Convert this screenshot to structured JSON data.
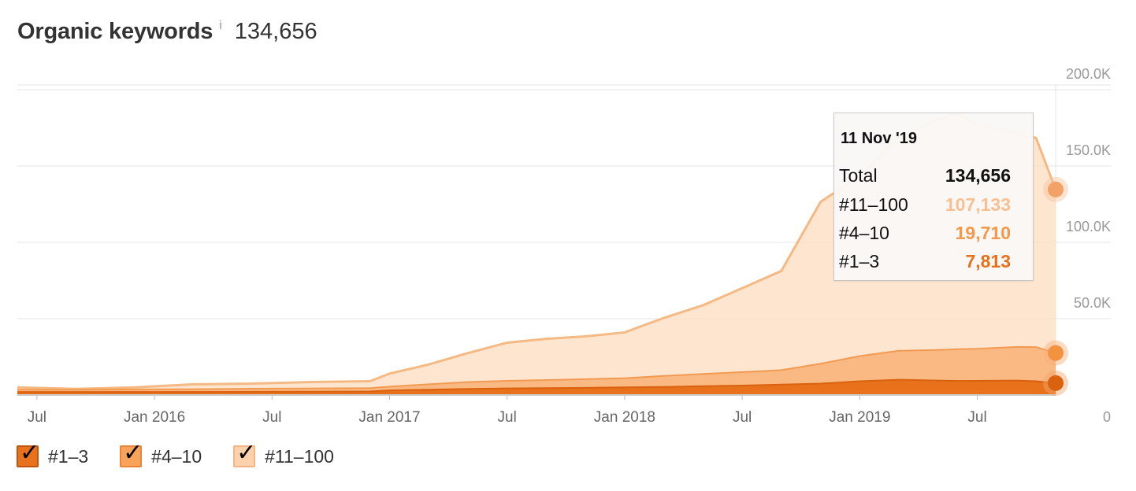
{
  "header": {
    "title": "Organic keywords",
    "info_icon": "info-icon",
    "total": "134,656"
  },
  "colors": {
    "top3": "#e8711c",
    "top4_10": "#f8a25a",
    "top11_100": "#fcdcc0",
    "line11_100": "#f5b983",
    "axis": "#d8d8d8",
    "grid": "#e6e6e6"
  },
  "tooltip": {
    "date": "11 Nov '19",
    "rows": [
      {
        "label": "Total",
        "value": "134,656",
        "color": "#111111"
      },
      {
        "label": "#11–100",
        "value": "107,133",
        "color": "#f8bf92"
      },
      {
        "label": "#4–10",
        "value": "19,710",
        "color": "#f4984a"
      },
      {
        "label": "#1–3",
        "value": "7,813",
        "color": "#e8711c"
      }
    ]
  },
  "legend": [
    {
      "label": "#1–3",
      "color": "#e8711c",
      "checked": true
    },
    {
      "label": "#4–10",
      "color": "#f8a25a",
      "checked": true
    },
    {
      "label": "#11–100",
      "color": "#fcd2ae",
      "checked": true
    }
  ],
  "chart_data": {
    "type": "area",
    "stacked": true,
    "x_start": "2015-06",
    "x_end": "2019-11",
    "xticks": [
      "Jul",
      "Jan 2016",
      "Jul",
      "Jan 2017",
      "Jul",
      "Jan 2018",
      "Jul",
      "Jan 2019",
      "Jul"
    ],
    "yticks": [
      "0",
      "50.0K",
      "100.0K",
      "150.0K",
      "200.0K"
    ],
    "ylim": [
      0,
      210000
    ],
    "y_axis_side": "right",
    "grid": true,
    "legend_position": "bottom-left",
    "x": [
      "2015-06",
      "2015-09",
      "2015-12",
      "2016-03",
      "2016-06",
      "2016-09",
      "2016-12",
      "2017-01",
      "2017-03",
      "2017-05",
      "2017-07",
      "2017-09",
      "2017-11",
      "2018-01",
      "2018-03",
      "2018-05",
      "2018-07",
      "2018-09",
      "2018-11",
      "2019-01",
      "2019-03",
      "2019-05",
      "2019-06",
      "2019-07",
      "2019-09",
      "2019-10",
      "2019-11"
    ],
    "series": [
      {
        "name": "#1–3",
        "values": [
          2000,
          2000,
          2000,
          2000,
          2100,
          2200,
          2300,
          3000,
          3500,
          4000,
          4300,
          4500,
          4700,
          5000,
          5300,
          5800,
          6200,
          6800,
          7500,
          9000,
          10000,
          9500,
          9200,
          9300,
          9500,
          9000,
          7813
        ]
      },
      {
        "name": "#4–10",
        "values": [
          1500,
          1500,
          1700,
          1800,
          2000,
          2100,
          2200,
          2500,
          3500,
          4500,
          5000,
          5300,
          5700,
          6000,
          7200,
          8000,
          8800,
          9500,
          13000,
          16500,
          19000,
          20000,
          20800,
          21000,
          22000,
          22400,
          19710
        ]
      },
      {
        "name": "#11–100",
        "values": [
          1500,
          500,
          1300,
          3200,
          3400,
          4200,
          4500,
          8500,
          13000,
          19000,
          25000,
          27000,
          28000,
          30000,
          38000,
          45000,
          55000,
          65000,
          106000,
          118000,
          140000,
          151000,
          154000,
          147000,
          140000,
          137000,
          107133
        ]
      }
    ]
  }
}
